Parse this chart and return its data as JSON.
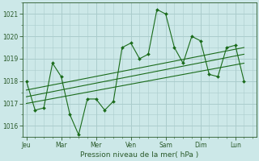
{
  "background_color": "#cce8e8",
  "grid_color": "#aacccc",
  "line_color": "#1a6b1a",
  "text_color": "#2a5a2a",
  "xlabel": "Pression niveau de la mer( hPa )",
  "ylim": [
    1015.5,
    1021.5
  ],
  "yticks": [
    1016,
    1017,
    1018,
    1019,
    1020,
    1021
  ],
  "day_labels": [
    "Jeu",
    "Mar",
    "Mer",
    "Ven",
    "Sam",
    "Dim",
    "Lun"
  ],
  "day_positions": [
    0,
    2,
    4,
    6,
    8,
    10,
    12
  ],
  "xlim": [
    -0.2,
    13.2
  ],
  "series1_x": [
    0,
    0.5,
    1,
    1.5,
    2,
    2.5,
    3,
    3.5,
    4,
    4.5,
    5,
    5.5,
    6,
    6.5,
    7,
    7.5,
    8,
    8.5,
    9,
    9.5,
    10,
    10.5,
    11,
    11.5,
    12,
    12.5
  ],
  "series1_y": [
    1018.0,
    1016.7,
    1016.8,
    1018.8,
    1018.2,
    1016.5,
    1015.6,
    1017.2,
    1017.2,
    1016.7,
    1017.1,
    1019.5,
    1019.7,
    1019.0,
    1019.2,
    1021.2,
    1021.0,
    1019.5,
    1018.8,
    1020.0,
    1019.8,
    1018.3,
    1018.2,
    1019.5,
    1019.6,
    1018.0
  ],
  "trend1_x": [
    0,
    12.5
  ],
  "trend1_y": [
    1017.0,
    1018.8
  ],
  "trend2_x": [
    0,
    12.5
  ],
  "trend2_y": [
    1017.3,
    1019.2
  ],
  "trend3_x": [
    0,
    12.5
  ],
  "trend3_y": [
    1017.6,
    1019.5
  ],
  "tick_fontsize": 5.5,
  "xlabel_fontsize": 6.5
}
